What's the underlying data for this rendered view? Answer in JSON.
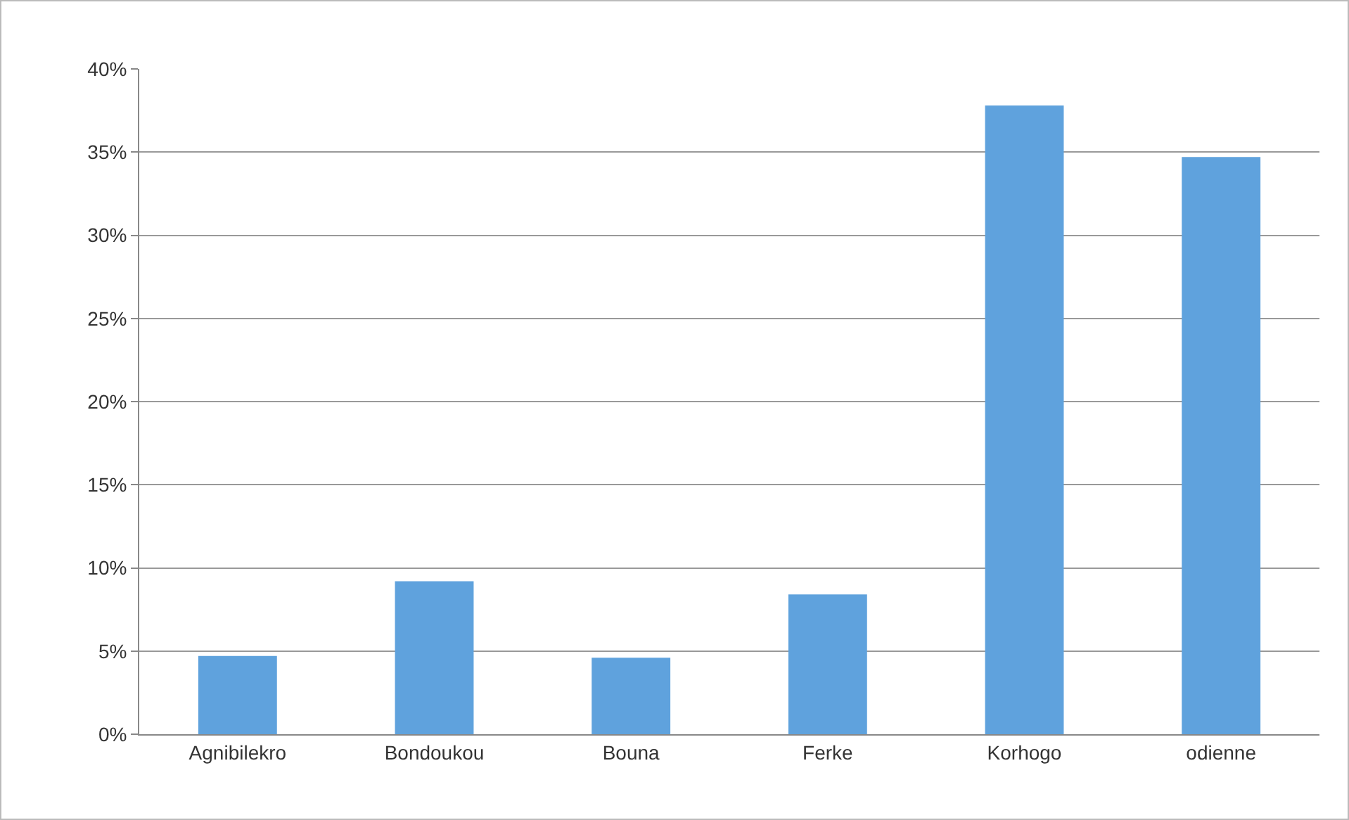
{
  "chart_data": {
    "type": "bar",
    "categories": [
      "Agnibilekro",
      "Bondoukou",
      "Bouna",
      "Ferke",
      "Korhogo",
      "odienne"
    ],
    "values": [
      4.7,
      9.2,
      4.6,
      8.4,
      37.8,
      34.7
    ],
    "color": "#5fa2dd",
    "ylim": [
      0,
      40
    ],
    "yticks": [
      {
        "value": 0,
        "label": "0%"
      },
      {
        "value": 5,
        "label": "5%"
      },
      {
        "value": 10,
        "label": "10%"
      },
      {
        "value": 15,
        "label": "15%"
      },
      {
        "value": 20,
        "label": "20%"
      },
      {
        "value": 25,
        "label": "25%"
      },
      {
        "value": 30,
        "label": "30%"
      },
      {
        "value": 35,
        "label": "35%"
      },
      {
        "value": 40,
        "label": "40%"
      }
    ],
    "grid": "y"
  }
}
